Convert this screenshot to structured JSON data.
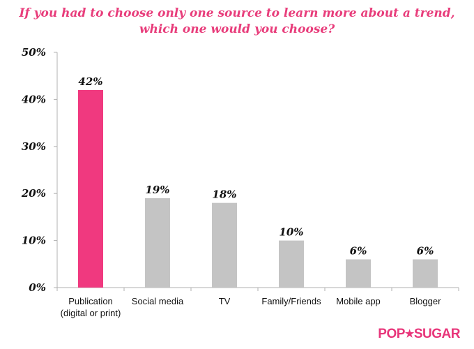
{
  "chart_data": {
    "type": "bar",
    "title_lines": [
      "If you had to choose only one source to learn more about a trend,",
      "which one would you choose?"
    ],
    "categories": [
      [
        "Publication",
        "(digital or print)"
      ],
      [
        "Social media"
      ],
      [
        "TV"
      ],
      [
        "Family/Friends"
      ],
      [
        "Mobile app"
      ],
      [
        "Blogger"
      ]
    ],
    "values": [
      42,
      19,
      18,
      10,
      6,
      6
    ],
    "value_labels": [
      "42%",
      "19%",
      "18%",
      "10%",
      "6%",
      "6%"
    ],
    "highlight_index": 0,
    "ylim": [
      0,
      50
    ],
    "yticks": [
      0,
      10,
      20,
      30,
      40,
      50
    ],
    "ytick_labels": [
      "0%",
      "10%",
      "20%",
      "30%",
      "40%",
      "50%"
    ],
    "grid": false,
    "legend": "none",
    "colors": {
      "highlight": "#f0397f",
      "bar": "#c4c4c4",
      "title": "#e83d7b",
      "axis": "#b0b0b0"
    }
  },
  "brand": {
    "left": "POP",
    "star": "★",
    "right": "SUGAR",
    "color": "#e8357a"
  }
}
